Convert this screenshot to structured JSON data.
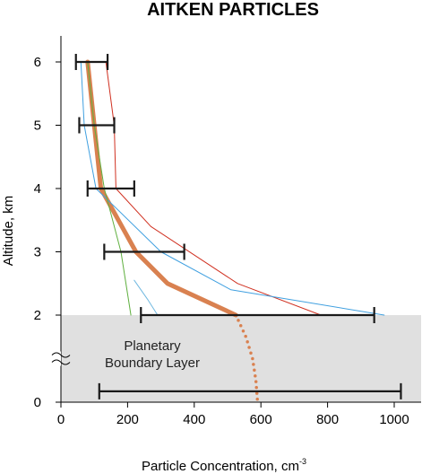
{
  "chart_data": {
    "type": "line",
    "title": "AITKEN PARTICLES",
    "xlabel": "Particle Concentration,",
    "xlabel_unit": "cm",
    "xlabel_unit_exp": "-3",
    "ylabel": "Altitude,  km",
    "xlim": [
      0,
      1000
    ],
    "ylim": [
      0,
      6
    ],
    "xticks": [
      0,
      200,
      400,
      600,
      800,
      1000
    ],
    "yticks": [
      0,
      2,
      3,
      4,
      5,
      6
    ],
    "y_axis_break": true,
    "boundary_layer": {
      "label_lines": [
        "Planetary",
        "Boundary Layer"
      ],
      "y_range": [
        0,
        2
      ],
      "color": "#e0e0e0"
    },
    "series": [
      {
        "color": "#d98150",
        "style": "thick",
        "x": [
          80,
          100,
          120,
          225,
          320,
          525
        ],
        "y": [
          6,
          5,
          4,
          3,
          2.5,
          2
        ]
      },
      {
        "color": "#d98150",
        "style": "dotted",
        "x": [
          525,
          555,
          575,
          585,
          590
        ],
        "y": [
          2,
          1.5,
          1.0,
          0.5,
          0
        ]
      },
      {
        "color": "#d03020",
        "style": "thin",
        "x": [
          135,
          160,
          165,
          270,
          530,
          780
        ],
        "y": [
          6,
          5,
          4,
          3.4,
          2.5,
          2
        ]
      },
      {
        "color": "#40a0e0",
        "style": "thin",
        "x": [
          60,
          70,
          105,
          300,
          510,
          970
        ],
        "y": [
          6,
          5,
          4,
          3,
          2.4,
          2
        ]
      },
      {
        "color": "#60b040",
        "style": "thin",
        "x": [
          80,
          100,
          130,
          180,
          210
        ],
        "y": [
          6,
          5,
          4,
          3,
          2
        ]
      },
      {
        "color": "#70b8e0",
        "style": "thin",
        "x": [
          220,
          260,
          290
        ],
        "y": [
          2.55,
          2.25,
          2
        ]
      }
    ],
    "error_bars": [
      {
        "y": 6,
        "x_low": 45,
        "x_high": 140
      },
      {
        "y": 5,
        "x_low": 55,
        "x_high": 160
      },
      {
        "y": 4,
        "x_low": 80,
        "x_high": 220
      },
      {
        "y": 3,
        "x_low": 130,
        "x_high": 370
      },
      {
        "y": 2,
        "x_low": 240,
        "x_high": 940
      },
      {
        "y": 0.25,
        "x_low": 115,
        "x_high": 1020
      }
    ]
  }
}
